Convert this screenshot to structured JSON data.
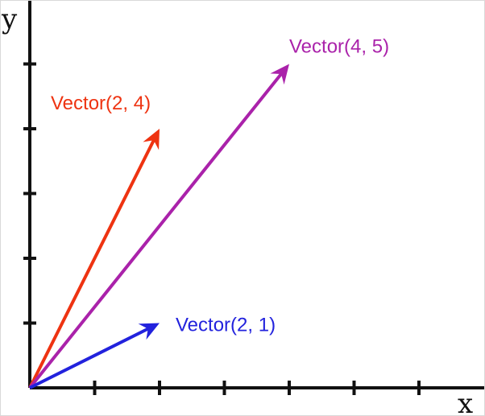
{
  "axes": {
    "x_label": "x",
    "y_label": "y"
  },
  "chart_data": {
    "type": "vector-plot",
    "xlim": [
      0,
      7
    ],
    "ylim": [
      0,
      6
    ],
    "x_ticks": [
      1,
      2,
      3,
      4,
      5,
      6,
      7
    ],
    "y_ticks": [
      1,
      2,
      3,
      4,
      5,
      6
    ],
    "vectors": [
      {
        "label": "Vector(2, 4)",
        "x": 2,
        "y": 4,
        "color": "#ee3311"
      },
      {
        "label": "Vector(4, 5)",
        "x": 4,
        "y": 5,
        "color": "#aa22aa"
      },
      {
        "label": "Vector(2, 1)",
        "x": 2,
        "y": 1,
        "color": "#2222dd"
      }
    ]
  }
}
